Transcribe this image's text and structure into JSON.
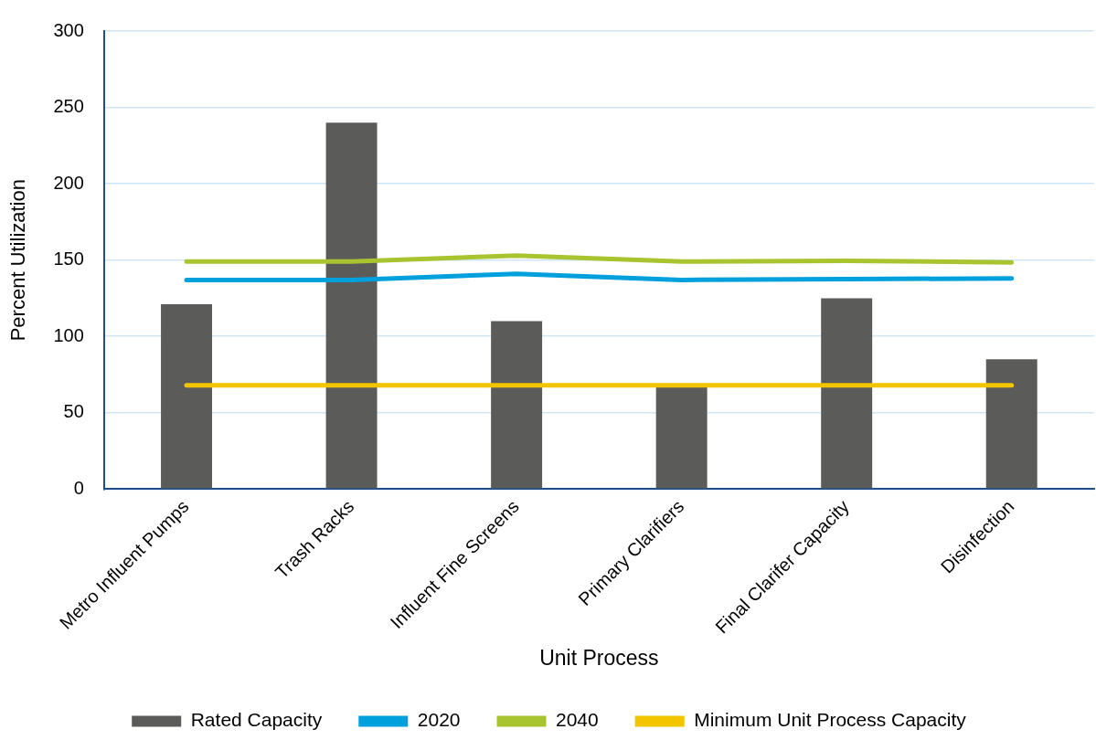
{
  "chart_data": {
    "type": "bar",
    "xlabel": "Unit Process",
    "ylabel": "Percent Utilization",
    "categories": [
      "Metro Influent Pumps",
      "Trash Racks",
      "Influent Fine Screens",
      "Primary Clarifiers",
      "Final Clarifer Capacity",
      "Disinfection"
    ],
    "series": [
      {
        "name": "Rated Capacity",
        "color": "#5b5c59",
        "values": [
          121,
          240,
          110,
          67,
          125,
          85
        ]
      },
      {
        "name": "2020",
        "type": "line",
        "color": "#00a0dc",
        "values": [
          137,
          137,
          141,
          137,
          137.5,
          138
        ]
      },
      {
        "name": "2040",
        "type": "line",
        "color": "#a8c530",
        "values": [
          149,
          149,
          153,
          149,
          149.5,
          148.5
        ]
      },
      {
        "name": "Minimum Unit Process Capacity",
        "type": "line",
        "color": "#f2c500",
        "values": [
          68,
          68,
          68,
          68,
          68,
          68
        ]
      }
    ],
    "ylim": [
      0,
      300
    ],
    "yticks": [
      0,
      50,
      100,
      150,
      200,
      250,
      300
    ],
    "grid": "y",
    "legend": "bottom",
    "marker": "none",
    "line_style": "solid"
  }
}
